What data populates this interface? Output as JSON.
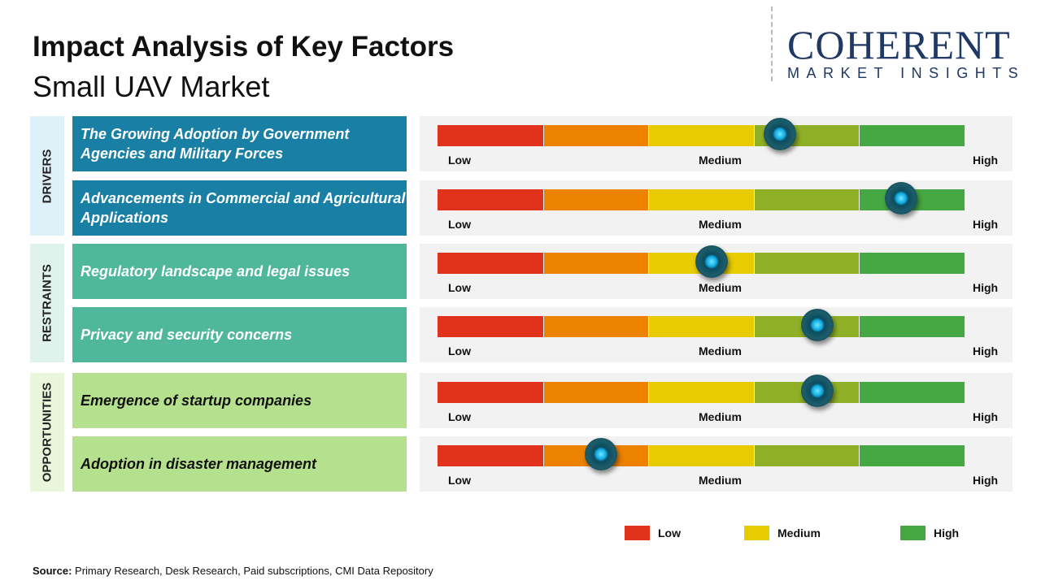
{
  "chart_data": {
    "type": "gauge",
    "title": "Impact Analysis of Key Factors",
    "subtitle": "Small UAV Market",
    "scale_labels": [
      "Low",
      "Medium",
      "High"
    ],
    "segment_colors": [
      "#e0321c",
      "#ec8200",
      "#e8cb00",
      "#8fb026",
      "#46a843"
    ],
    "categories": [
      {
        "name": "DRIVERS",
        "bg": "#dff1f8",
        "row_color": "#1a7fa5",
        "text_color": "#ffffff",
        "factors": [
          {
            "label": "The Growing Adoption by Government Agencies and Military Forces",
            "impact": 0.65
          },
          {
            "label": "Advancements in Commercial and Agricultural Applications",
            "impact": 0.88
          }
        ]
      },
      {
        "name": "RESTRAINTS",
        "bg": "#dff3ec",
        "row_color": "#4fb79b",
        "text_color": "#ffffff",
        "factors": [
          {
            "label": "Regulatory landscape and legal issues",
            "impact": 0.52
          },
          {
            "label": "Privacy and security concerns",
            "impact": 0.72
          }
        ]
      },
      {
        "name": "OPPORTUNITIES",
        "bg": "#eaf6dc",
        "row_color": "#b5e08e",
        "text_color": "#111111",
        "factors": [
          {
            "label": "Emergence of startup companies",
            "impact": 0.72
          },
          {
            "label": "Adoption in disaster management",
            "impact": 0.31
          }
        ]
      }
    ],
    "legend": [
      {
        "label": "Low",
        "color": "#e0321c"
      },
      {
        "label": "Medium",
        "color": "#e8cb00"
      },
      {
        "label": "High",
        "color": "#46a843"
      }
    ]
  },
  "logo": {
    "line1": "COHERENT",
    "line2": "MARKET INSIGHTS"
  },
  "source": {
    "prefix": "Source:",
    "text": " Primary Research, Desk Research, Paid subscriptions, CMI Data Repository"
  }
}
